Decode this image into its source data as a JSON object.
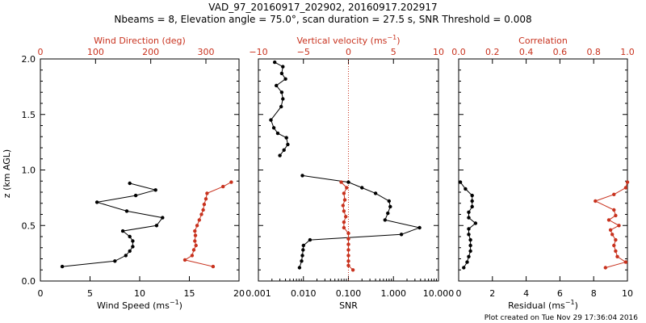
{
  "title_line1": "VAD_97_20160917_202902, 20160917.202917",
  "title_line2": "Nbeams = 8, Elevation angle = 75.0°, scan duration = 27.5 s, SNR Threshold = 0.008",
  "footer": "Plot created on Tue Nov 29 17:36:04 2016",
  "colors": {
    "primary": "#000000",
    "secondary": "#c8321e"
  },
  "chart_data": [
    {
      "type": "line",
      "ylabel": "z (km AGL)",
      "ylim": [
        0,
        2.0
      ],
      "y_ticks": [
        "0.0",
        "0.5",
        "1.0",
        "1.5",
        "2.0"
      ],
      "bottom_axis": {
        "label": "Wind Speed (ms",
        "label_sup": "−1",
        "label_tail": ")",
        "xlim": [
          0,
          20
        ],
        "ticks": [
          "0",
          "5",
          "10",
          "15",
          "20"
        ]
      },
      "top_axis": {
        "label": "Wind Direction (deg)",
        "xlim": [
          0,
          360
        ],
        "ticks": [
          "0",
          "100",
          "200",
          "300"
        ]
      },
      "series": [
        {
          "axis": "bottom",
          "color": "#000000",
          "points": [
            [
              2.2,
              0.13
            ],
            [
              7.5,
              0.18
            ],
            [
              8.6,
              0.23
            ],
            [
              9.0,
              0.27
            ],
            [
              9.3,
              0.31
            ],
            [
              9.3,
              0.36
            ],
            [
              9.0,
              0.4
            ],
            [
              8.3,
              0.45
            ],
            [
              11.7,
              0.5
            ],
            [
              12.3,
              0.57
            ],
            [
              8.7,
              0.63
            ],
            [
              5.7,
              0.71
            ],
            [
              9.6,
              0.77
            ],
            [
              11.6,
              0.82
            ],
            [
              9.0,
              0.88
            ]
          ]
        },
        {
          "axis": "top",
          "color": "#c8321e",
          "points": [
            [
              313,
              0.13
            ],
            [
              262,
              0.19
            ],
            [
              275,
              0.23
            ],
            [
              278,
              0.28
            ],
            [
              282,
              0.32
            ],
            [
              280,
              0.36
            ],
            [
              281,
              0.41
            ],
            [
              280,
              0.45
            ],
            [
              284,
              0.5
            ],
            [
              288,
              0.55
            ],
            [
              292,
              0.6
            ],
            [
              295,
              0.64
            ],
            [
              297,
              0.69
            ],
            [
              300,
              0.74
            ],
            [
              302,
              0.79
            ],
            [
              331,
              0.85
            ],
            [
              346,
              0.89
            ]
          ]
        }
      ]
    },
    {
      "type": "line",
      "ylim": [
        0,
        2.0
      ],
      "bottom_axis": {
        "label": "SNR",
        "scale": "log",
        "xlim": [
          0.001,
          10
        ],
        "ticks": [
          "0.001",
          "0.010",
          "0.100",
          "1.000",
          "10.000"
        ]
      },
      "top_axis": {
        "label": "Vertical velocity (ms",
        "label_sup": "−1",
        "label_tail": ")",
        "xlim": [
          -10,
          10
        ],
        "ticks": [
          "−10",
          "−5",
          "0",
          "5",
          "10"
        ]
      },
      "reference_line": {
        "axis": "top",
        "value": 0,
        "color": "#c8321e",
        "style": "dotted"
      },
      "series": [
        {
          "axis": "bottom",
          "color": "#000000",
          "points": [
            [
              0.0082,
              0.12
            ],
            [
              0.0091,
              0.18
            ],
            [
              0.0095,
              0.23
            ],
            [
              0.0098,
              0.28
            ],
            [
              0.01,
              0.32
            ],
            [
              0.014,
              0.37
            ],
            [
              1.5,
              0.42
            ],
            [
              3.8,
              0.48
            ],
            [
              0.65,
              0.55
            ],
            [
              0.75,
              0.61
            ],
            [
              0.85,
              0.67
            ],
            [
              0.8,
              0.72
            ],
            [
              0.4,
              0.79
            ],
            [
              0.2,
              0.84
            ],
            [
              0.1,
              0.89
            ],
            [
              0.0095,
              0.95
            ],
            [
              null,
              null
            ],
            [
              0.003,
              1.13
            ],
            [
              0.0037,
              1.18
            ],
            [
              0.0045,
              1.23
            ],
            [
              0.0042,
              1.29
            ],
            [
              0.0027,
              1.33
            ],
            [
              0.0022,
              1.38
            ],
            [
              0.0019,
              1.45
            ],
            [
              0.0032,
              1.57
            ],
            [
              0.0035,
              1.64
            ],
            [
              0.0033,
              1.7
            ],
            [
              0.0025,
              1.76
            ],
            [
              0.004,
              1.82
            ],
            [
              0.0033,
              1.87
            ],
            [
              0.0035,
              1.93
            ],
            [
              0.0023,
              1.97
            ]
          ]
        },
        {
          "axis": "top",
          "color": "#c8321e",
          "points": [
            [
              0.5,
              0.1
            ],
            [
              0.0,
              0.14
            ],
            [
              0.0,
              0.18
            ],
            [
              0.0,
              0.23
            ],
            [
              0.0,
              0.28
            ],
            [
              0.0,
              0.33
            ],
            [
              0.0,
              0.38
            ],
            [
              0.0,
              0.43
            ],
            [
              -0.5,
              0.48
            ],
            [
              -0.5,
              0.53
            ],
            [
              -0.3,
              0.58
            ],
            [
              -0.5,
              0.63
            ],
            [
              -0.6,
              0.68
            ],
            [
              -0.4,
              0.73
            ],
            [
              -0.5,
              0.79
            ],
            [
              -0.2,
              0.84
            ],
            [
              -0.8,
              0.89
            ]
          ]
        }
      ]
    },
    {
      "type": "line",
      "ylim": [
        0,
        2.0
      ],
      "bottom_axis": {
        "label": "Residual (ms",
        "label_sup": "−1",
        "label_tail": ")",
        "xlim": [
          0,
          10
        ],
        "ticks": [
          "0",
          "2",
          "4",
          "6",
          "8",
          "10"
        ]
      },
      "top_axis": {
        "label": "Correlation",
        "xlim": [
          0,
          1.0
        ],
        "ticks": [
          "0.0",
          "0.2",
          "0.4",
          "0.6",
          "0.8",
          "1.0"
        ]
      },
      "series": [
        {
          "axis": "bottom",
          "color": "#000000",
          "points": [
            [
              0.3,
              0.12
            ],
            [
              0.5,
              0.17
            ],
            [
              0.6,
              0.22
            ],
            [
              0.7,
              0.27
            ],
            [
              0.7,
              0.32
            ],
            [
              0.7,
              0.37
            ],
            [
              0.6,
              0.42
            ],
            [
              0.6,
              0.47
            ],
            [
              1.0,
              0.52
            ],
            [
              0.6,
              0.57
            ],
            [
              0.6,
              0.62
            ],
            [
              0.8,
              0.67
            ],
            [
              0.8,
              0.72
            ],
            [
              0.8,
              0.77
            ],
            [
              0.4,
              0.83
            ],
            [
              0.1,
              0.89
            ]
          ]
        },
        {
          "axis": "top",
          "color": "#c8321e",
          "points": [
            [
              0.87,
              0.12
            ],
            [
              0.99,
              0.17
            ],
            [
              0.94,
              0.22
            ],
            [
              0.93,
              0.27
            ],
            [
              0.92,
              0.32
            ],
            [
              0.93,
              0.37
            ],
            [
              0.91,
              0.42
            ],
            [
              0.9,
              0.46
            ],
            [
              0.95,
              0.5
            ],
            [
              0.89,
              0.55
            ],
            [
              0.93,
              0.59
            ],
            [
              0.92,
              0.64
            ],
            [
              0.81,
              0.72
            ],
            [
              0.92,
              0.78
            ],
            [
              0.99,
              0.84
            ],
            [
              1.0,
              0.89
            ]
          ]
        }
      ]
    }
  ]
}
